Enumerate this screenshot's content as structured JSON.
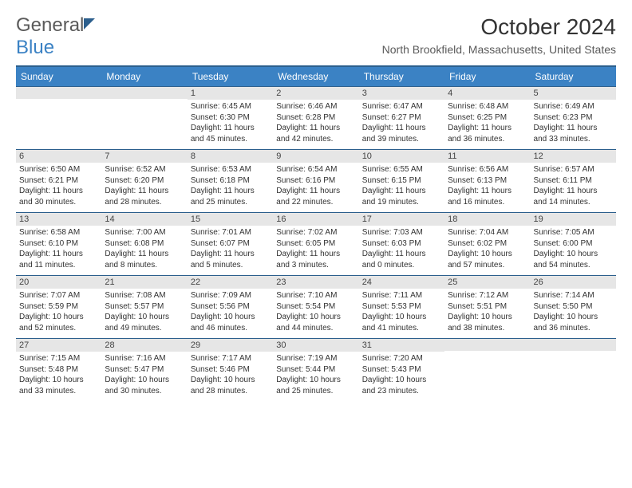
{
  "logo": {
    "text_general": "General",
    "text_blue": "Blue"
  },
  "header": {
    "title": "October 2024",
    "location": "North Brookfield, Massachusetts, United States"
  },
  "colors": {
    "header_bg": "#3b82c4",
    "header_border": "#2c5f8d",
    "daynum_bg": "#e6e6e6",
    "text": "#333333"
  },
  "dow": [
    "Sunday",
    "Monday",
    "Tuesday",
    "Wednesday",
    "Thursday",
    "Friday",
    "Saturday"
  ],
  "weeks": [
    [
      {
        "empty": true
      },
      {
        "empty": true
      },
      {
        "num": "1",
        "sunrise": "Sunrise: 6:45 AM",
        "sunset": "Sunset: 6:30 PM",
        "dl1": "Daylight: 11 hours",
        "dl2": "and 45 minutes."
      },
      {
        "num": "2",
        "sunrise": "Sunrise: 6:46 AM",
        "sunset": "Sunset: 6:28 PM",
        "dl1": "Daylight: 11 hours",
        "dl2": "and 42 minutes."
      },
      {
        "num": "3",
        "sunrise": "Sunrise: 6:47 AM",
        "sunset": "Sunset: 6:27 PM",
        "dl1": "Daylight: 11 hours",
        "dl2": "and 39 minutes."
      },
      {
        "num": "4",
        "sunrise": "Sunrise: 6:48 AM",
        "sunset": "Sunset: 6:25 PM",
        "dl1": "Daylight: 11 hours",
        "dl2": "and 36 minutes."
      },
      {
        "num": "5",
        "sunrise": "Sunrise: 6:49 AM",
        "sunset": "Sunset: 6:23 PM",
        "dl1": "Daylight: 11 hours",
        "dl2": "and 33 minutes."
      }
    ],
    [
      {
        "num": "6",
        "sunrise": "Sunrise: 6:50 AM",
        "sunset": "Sunset: 6:21 PM",
        "dl1": "Daylight: 11 hours",
        "dl2": "and 30 minutes."
      },
      {
        "num": "7",
        "sunrise": "Sunrise: 6:52 AM",
        "sunset": "Sunset: 6:20 PM",
        "dl1": "Daylight: 11 hours",
        "dl2": "and 28 minutes."
      },
      {
        "num": "8",
        "sunrise": "Sunrise: 6:53 AM",
        "sunset": "Sunset: 6:18 PM",
        "dl1": "Daylight: 11 hours",
        "dl2": "and 25 minutes."
      },
      {
        "num": "9",
        "sunrise": "Sunrise: 6:54 AM",
        "sunset": "Sunset: 6:16 PM",
        "dl1": "Daylight: 11 hours",
        "dl2": "and 22 minutes."
      },
      {
        "num": "10",
        "sunrise": "Sunrise: 6:55 AM",
        "sunset": "Sunset: 6:15 PM",
        "dl1": "Daylight: 11 hours",
        "dl2": "and 19 minutes."
      },
      {
        "num": "11",
        "sunrise": "Sunrise: 6:56 AM",
        "sunset": "Sunset: 6:13 PM",
        "dl1": "Daylight: 11 hours",
        "dl2": "and 16 minutes."
      },
      {
        "num": "12",
        "sunrise": "Sunrise: 6:57 AM",
        "sunset": "Sunset: 6:11 PM",
        "dl1": "Daylight: 11 hours",
        "dl2": "and 14 minutes."
      }
    ],
    [
      {
        "num": "13",
        "sunrise": "Sunrise: 6:58 AM",
        "sunset": "Sunset: 6:10 PM",
        "dl1": "Daylight: 11 hours",
        "dl2": "and 11 minutes."
      },
      {
        "num": "14",
        "sunrise": "Sunrise: 7:00 AM",
        "sunset": "Sunset: 6:08 PM",
        "dl1": "Daylight: 11 hours",
        "dl2": "and 8 minutes."
      },
      {
        "num": "15",
        "sunrise": "Sunrise: 7:01 AM",
        "sunset": "Sunset: 6:07 PM",
        "dl1": "Daylight: 11 hours",
        "dl2": "and 5 minutes."
      },
      {
        "num": "16",
        "sunrise": "Sunrise: 7:02 AM",
        "sunset": "Sunset: 6:05 PM",
        "dl1": "Daylight: 11 hours",
        "dl2": "and 3 minutes."
      },
      {
        "num": "17",
        "sunrise": "Sunrise: 7:03 AM",
        "sunset": "Sunset: 6:03 PM",
        "dl1": "Daylight: 11 hours",
        "dl2": "and 0 minutes."
      },
      {
        "num": "18",
        "sunrise": "Sunrise: 7:04 AM",
        "sunset": "Sunset: 6:02 PM",
        "dl1": "Daylight: 10 hours",
        "dl2": "and 57 minutes."
      },
      {
        "num": "19",
        "sunrise": "Sunrise: 7:05 AM",
        "sunset": "Sunset: 6:00 PM",
        "dl1": "Daylight: 10 hours",
        "dl2": "and 54 minutes."
      }
    ],
    [
      {
        "num": "20",
        "sunrise": "Sunrise: 7:07 AM",
        "sunset": "Sunset: 5:59 PM",
        "dl1": "Daylight: 10 hours",
        "dl2": "and 52 minutes."
      },
      {
        "num": "21",
        "sunrise": "Sunrise: 7:08 AM",
        "sunset": "Sunset: 5:57 PM",
        "dl1": "Daylight: 10 hours",
        "dl2": "and 49 minutes."
      },
      {
        "num": "22",
        "sunrise": "Sunrise: 7:09 AM",
        "sunset": "Sunset: 5:56 PM",
        "dl1": "Daylight: 10 hours",
        "dl2": "and 46 minutes."
      },
      {
        "num": "23",
        "sunrise": "Sunrise: 7:10 AM",
        "sunset": "Sunset: 5:54 PM",
        "dl1": "Daylight: 10 hours",
        "dl2": "and 44 minutes."
      },
      {
        "num": "24",
        "sunrise": "Sunrise: 7:11 AM",
        "sunset": "Sunset: 5:53 PM",
        "dl1": "Daylight: 10 hours",
        "dl2": "and 41 minutes."
      },
      {
        "num": "25",
        "sunrise": "Sunrise: 7:12 AM",
        "sunset": "Sunset: 5:51 PM",
        "dl1": "Daylight: 10 hours",
        "dl2": "and 38 minutes."
      },
      {
        "num": "26",
        "sunrise": "Sunrise: 7:14 AM",
        "sunset": "Sunset: 5:50 PM",
        "dl1": "Daylight: 10 hours",
        "dl2": "and 36 minutes."
      }
    ],
    [
      {
        "num": "27",
        "sunrise": "Sunrise: 7:15 AM",
        "sunset": "Sunset: 5:48 PM",
        "dl1": "Daylight: 10 hours",
        "dl2": "and 33 minutes."
      },
      {
        "num": "28",
        "sunrise": "Sunrise: 7:16 AM",
        "sunset": "Sunset: 5:47 PM",
        "dl1": "Daylight: 10 hours",
        "dl2": "and 30 minutes."
      },
      {
        "num": "29",
        "sunrise": "Sunrise: 7:17 AM",
        "sunset": "Sunset: 5:46 PM",
        "dl1": "Daylight: 10 hours",
        "dl2": "and 28 minutes."
      },
      {
        "num": "30",
        "sunrise": "Sunrise: 7:19 AM",
        "sunset": "Sunset: 5:44 PM",
        "dl1": "Daylight: 10 hours",
        "dl2": "and 25 minutes."
      },
      {
        "num": "31",
        "sunrise": "Sunrise: 7:20 AM",
        "sunset": "Sunset: 5:43 PM",
        "dl1": "Daylight: 10 hours",
        "dl2": "and 23 minutes."
      },
      {
        "empty": true
      },
      {
        "empty": true
      }
    ]
  ]
}
